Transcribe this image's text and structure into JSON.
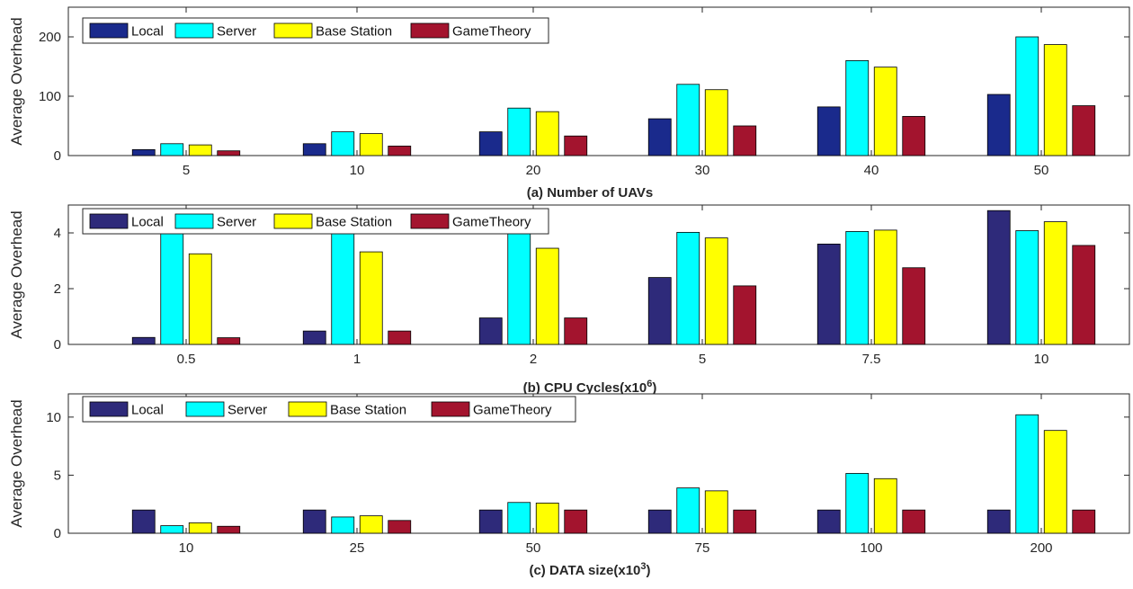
{
  "chart_data": [
    {
      "type": "bar",
      "categories": [
        "5",
        "10",
        "20",
        "30",
        "40",
        "50"
      ],
      "series": [
        {
          "name": "Local",
          "color": "#1a2a8c",
          "values": [
            10,
            20,
            40,
            62,
            82,
            103
          ]
        },
        {
          "name": "Server",
          "color": "#00ffff",
          "values": [
            20,
            40,
            80,
            120,
            160,
            200
          ]
        },
        {
          "name": "Base Station",
          "color": "#ffff00",
          "values": [
            18,
            37,
            74,
            111,
            149,
            187
          ]
        },
        {
          "name": "GameTheory",
          "color": "#a3142e",
          "values": [
            8,
            16,
            33,
            50,
            66,
            84
          ]
        }
      ],
      "yticks": [
        "0",
        "100",
        "200"
      ],
      "ylim": [
        0,
        250
      ],
      "ylabel": "Average Overhead",
      "xlabel": "(a)  Number of UAVs",
      "xlabel_sup": "",
      "legend_placement": "top-left"
    },
    {
      "type": "bar",
      "categories": [
        "0.5",
        "1",
        "2",
        "5",
        "7.5",
        "10"
      ],
      "series": [
        {
          "name": "Local",
          "color": "#2e2a7a",
          "values": [
            0.25,
            0.48,
            0.95,
            2.4,
            3.6,
            4.8
          ]
        },
        {
          "name": "Server",
          "color": "#00ffff",
          "values": [
            4.0,
            4.0,
            4.0,
            4.02,
            4.05,
            4.08
          ]
        },
        {
          "name": "Base Station",
          "color": "#ffff00",
          "values": [
            3.25,
            3.32,
            3.45,
            3.82,
            4.1,
            4.4
          ]
        },
        {
          "name": "GameTheory",
          "color": "#a3142e",
          "values": [
            0.24,
            0.48,
            0.95,
            2.1,
            2.75,
            3.55
          ]
        }
      ],
      "yticks": [
        "0",
        "2",
        "4"
      ],
      "ylim": [
        0,
        5
      ],
      "ylabel": "Average Overhead",
      "xlabel": "(b)  CPU Cycles(x10",
      "xlabel_sup": "6",
      "xlabel_end": ")",
      "legend_placement": "top-left"
    },
    {
      "type": "bar",
      "categories": [
        "10",
        "25",
        "50",
        "75",
        "100",
        "200"
      ],
      "series": [
        {
          "name": "Local",
          "color": "#2e2a7a",
          "values": [
            2.0,
            2.0,
            2.0,
            2.0,
            2.0,
            2.0
          ]
        },
        {
          "name": "Server",
          "color": "#00ffff",
          "values": [
            0.65,
            1.4,
            2.65,
            3.9,
            5.15,
            10.2
          ]
        },
        {
          "name": "Base Station",
          "color": "#ffff00",
          "values": [
            0.9,
            1.5,
            2.6,
            3.65,
            4.7,
            8.85
          ]
        },
        {
          "name": "GameTheory",
          "color": "#a3142e",
          "values": [
            0.6,
            1.1,
            2.0,
            2.0,
            2.0,
            2.0
          ]
        }
      ],
      "yticks": [
        "0",
        "5",
        "10"
      ],
      "ylim": [
        0,
        12
      ],
      "ylabel": "Average Overhead",
      "xlabel": "(c)  DATA size(x10",
      "xlabel_sup": "3",
      "xlabel_end": ")",
      "legend_placement": "top-left"
    }
  ]
}
